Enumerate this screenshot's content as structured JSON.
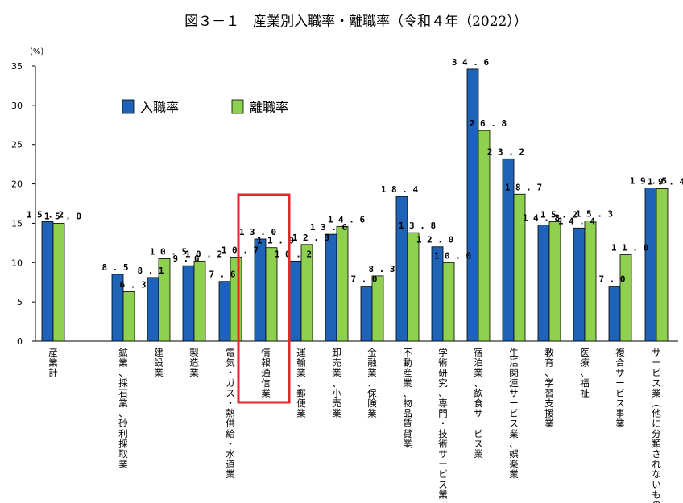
{
  "chart_data": {
    "type": "bar",
    "title": "図３－１　産業別入職率・離職率（令和４年（2022））",
    "ylabel": "(%)",
    "xlabel": "",
    "ylim": [
      0,
      35
    ],
    "yticks": [
      0,
      5,
      10,
      15,
      20,
      25,
      30,
      35
    ],
    "grid": false,
    "legend": "top-left",
    "highlighted_category": "情報通信業",
    "categories": [
      "産業計",
      "鉱業，採石業，砂利採取業",
      "建設業",
      "製造業",
      "電気・ガス・熱供給・水道業",
      "情報通信業",
      "運輸業，郵便業",
      "卸売業，小売業",
      "金融業，保険業",
      "不動産業，物品賃貸業",
      "学術研究，専門・技術サービス業",
      "宿泊業，飲食サービス業",
      "生活関連サービス業，娯楽業",
      "教育，学習支援業",
      "医療，福祉",
      "複合サービス事業",
      "サービス業（他に分類されないもの）"
    ],
    "series": [
      {
        "name": "入職率",
        "color": "#1f63b8",
        "values": [
          15.2,
          8.5,
          8.1,
          9.6,
          7.6,
          13.0,
          10.2,
          13.6,
          7.0,
          18.4,
          12.0,
          34.6,
          23.2,
          14.8,
          14.4,
          7.0,
          19.5
        ],
        "labels": [
          "15.2",
          "8.5",
          "8.1",
          "9.6",
          "7.6",
          "13.0",
          "10.2",
          "13.6",
          "7.0",
          "18.4",
          "12.0",
          "34.6",
          "23.2",
          "14.8",
          "14.4",
          "7.0",
          "19.5"
        ]
      },
      {
        "name": "離職率",
        "color": "#8fd14f",
        "values": [
          15.0,
          6.3,
          10.5,
          10.2,
          10.7,
          11.9,
          12.3,
          14.6,
          8.3,
          13.8,
          10.0,
          26.8,
          18.7,
          15.2,
          15.3,
          11.0,
          19.4
        ],
        "labels": [
          "15.0",
          "6.3",
          "10.5",
          "10.2",
          "10.7",
          "11.9",
          "12.3",
          "14.6",
          "8.3",
          "13.8",
          "10.0",
          "26.8",
          "18.7",
          "15.2",
          "15.3",
          "11.0",
          "19.4"
        ]
      }
    ]
  }
}
